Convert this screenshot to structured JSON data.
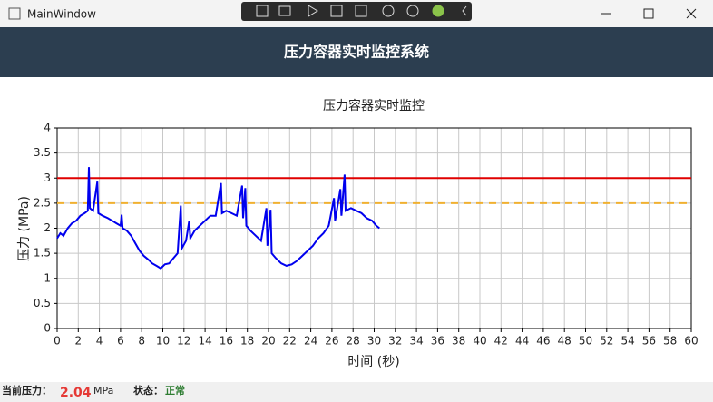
{
  "window": {
    "title": "MainWindow"
  },
  "header": {
    "title": "压力容器实时监控系统"
  },
  "chart_data": {
    "type": "line",
    "title": "压力容器实时监控",
    "xlabel": "时间 (秒)",
    "ylabel": "压力 (MPa)",
    "xlim": [
      0,
      60
    ],
    "xticks": [
      0,
      2,
      4,
      6,
      8,
      10,
      12,
      14,
      16,
      18,
      20,
      22,
      24,
      26,
      28,
      30,
      32,
      34,
      36,
      38,
      40,
      42,
      44,
      46,
      48,
      50,
      52,
      54,
      56,
      58,
      60
    ],
    "ylim": [
      0,
      4
    ],
    "yticks": [
      0,
      0.5,
      1,
      1.5,
      2,
      2.5,
      3,
      3.5,
      4
    ],
    "grid": true,
    "reference_lines": [
      {
        "value": 3,
        "color": "#e00000"
      },
      {
        "value": 2.5,
        "color": "#f0b030",
        "dashed": true
      }
    ],
    "series": [
      {
        "color": "#0000ee",
        "x": [
          0,
          0.3,
          0.6,
          1,
          1.4,
          1.8,
          2.2,
          2.6,
          2.9,
          3.0,
          3.1,
          3.4,
          3.8,
          3.9,
          4.3,
          4.8,
          5.2,
          5.6,
          6.0,
          6.1,
          6.2,
          6.6,
          7.0,
          7.4,
          7.8,
          8.2,
          8.6,
          9.0,
          9.4,
          9.8,
          10.2,
          10.6,
          11.0,
          11.4,
          11.7,
          11.8,
          12.2,
          12.5,
          12.6,
          13.0,
          13.5,
          14.0,
          14.5,
          15.0,
          15.5,
          15.6,
          16.0,
          16.5,
          17.0,
          17.5,
          17.6,
          17.8,
          17.9,
          18.3,
          18.8,
          19.3,
          19.8,
          19.9,
          20.2,
          20.3,
          20.7,
          21.2,
          21.7,
          22.2,
          22.7,
          23.2,
          23.7,
          24.2,
          24.7,
          25.2,
          25.7,
          26.2,
          26.3,
          26.8,
          26.9,
          27.2,
          27.3,
          27.8,
          28.3,
          28.8,
          29.3,
          29.8,
          30.2,
          30.5
        ],
        "values": [
          1.8,
          1.9,
          1.85,
          2.0,
          2.1,
          2.15,
          2.25,
          2.3,
          2.35,
          3.22,
          2.4,
          2.35,
          2.93,
          2.3,
          2.25,
          2.2,
          2.15,
          2.1,
          2.05,
          2.27,
          2.0,
          1.95,
          1.85,
          1.7,
          1.55,
          1.45,
          1.38,
          1.3,
          1.25,
          1.2,
          1.28,
          1.3,
          1.4,
          1.5,
          2.45,
          1.6,
          1.75,
          2.15,
          1.8,
          1.95,
          2.05,
          2.15,
          2.25,
          2.25,
          2.9,
          2.3,
          2.35,
          2.3,
          2.25,
          2.85,
          2.2,
          2.8,
          2.05,
          1.95,
          1.85,
          1.75,
          2.4,
          1.65,
          2.37,
          1.5,
          1.4,
          1.3,
          1.25,
          1.28,
          1.35,
          1.45,
          1.55,
          1.65,
          1.8,
          1.9,
          2.05,
          2.6,
          2.15,
          2.78,
          2.25,
          3.07,
          2.35,
          2.4,
          2.35,
          2.3,
          2.2,
          2.15,
          2.05,
          2.0
        ]
      }
    ]
  },
  "status_bar": {
    "pressure_label": "当前压力：",
    "pressure_value": 2.04,
    "unit": "MPa",
    "state_label": "状态：",
    "state_value": "正常"
  }
}
